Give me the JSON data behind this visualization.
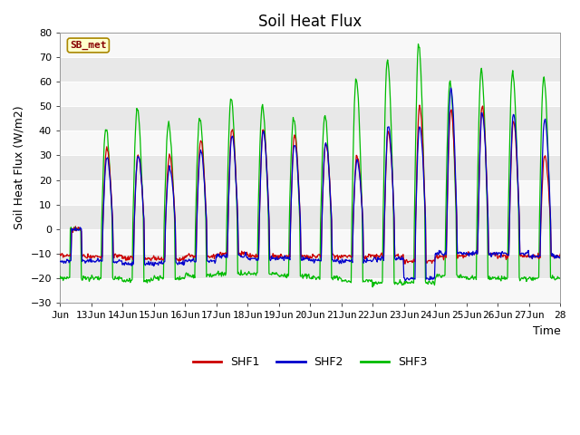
{
  "title": "Soil Heat Flux",
  "ylabel": "Soil Heat Flux (W/m2)",
  "xlabel": "Time",
  "ylim": [
    -30,
    80
  ],
  "yticks": [
    -30,
    -20,
    -10,
    0,
    10,
    20,
    30,
    40,
    50,
    60,
    70,
    80
  ],
  "xtick_labels": [
    "Jun",
    "13Jun",
    "14Jun",
    "15Jun",
    "16Jun",
    "17Jun",
    "18Jun",
    "19Jun",
    "20Jun",
    "21Jun",
    "22Jun",
    "23Jun",
    "24Jun",
    "25Jun",
    "26Jun",
    "27Jun",
    "28"
  ],
  "shf1_color": "#cc0000",
  "shf2_color": "#0000cc",
  "shf3_color": "#00bb00",
  "fig_bg_color": "#ffffff",
  "plot_bg_color": "#f0f0f0",
  "grid_color": "#ffffff",
  "band_light": "#f8f8f8",
  "band_dark": "#e8e8e8",
  "legend_label1": "SHF1",
  "legend_label2": "SHF2",
  "legend_label3": "SHF3",
  "station_label": "SB_met",
  "title_fontsize": 12,
  "label_fontsize": 9,
  "tick_fontsize": 8,
  "legend_fontsize": 9
}
